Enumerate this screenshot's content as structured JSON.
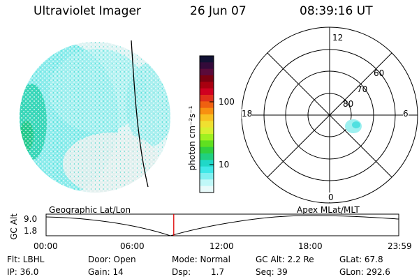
{
  "header": {
    "instrument": "Ultraviolet Imager",
    "date": "26 Jun 07",
    "time": "08:39:16 UT"
  },
  "colorbar": {
    "label": "photon cm⁻²s⁻¹",
    "ticks": [
      "100",
      "10"
    ],
    "colors": [
      "#111133",
      "#330a3a",
      "#5a0a3a",
      "#7a0010",
      "#a80010",
      "#d00020",
      "#e0301a",
      "#f06010",
      "#f89010",
      "#f8c020",
      "#f0e030",
      "#d8f030",
      "#a0f020",
      "#60e020",
      "#30d040",
      "#20d080",
      "#20d8c8",
      "#40e8e8",
      "#80f0f0",
      "#c0f8f8",
      "#e8fafa"
    ]
  },
  "polar": {
    "mlt_labels": [
      "12",
      "18",
      "6",
      "0"
    ],
    "lat_labels": [
      "60",
      "70",
      "80"
    ]
  },
  "timeline": {
    "left_label": "Geographic Lat/Lon",
    "right_label": "Apex MLat/MLT",
    "y_axis_label": "GC Alt",
    "y_max": "9.0",
    "y_min": "1.8",
    "times": [
      "00:00",
      "06:00",
      "12:00",
      "18:00",
      "23:59"
    ],
    "current_fraction": 0.362
  },
  "info": {
    "filter": "Flt: LBHL",
    "ip": "IP: 36.0",
    "door": "Door: Open",
    "gain": "Gain: 14",
    "mode": "Mode: Normal",
    "dsp_label": "Dsp:",
    "dsp_value": "1.7",
    "gc_alt": "GC Alt: 2.2 Re",
    "seq": "Seq: 39",
    "glat": "GLat:  67.8",
    "glon": "GLon: 292.6"
  }
}
